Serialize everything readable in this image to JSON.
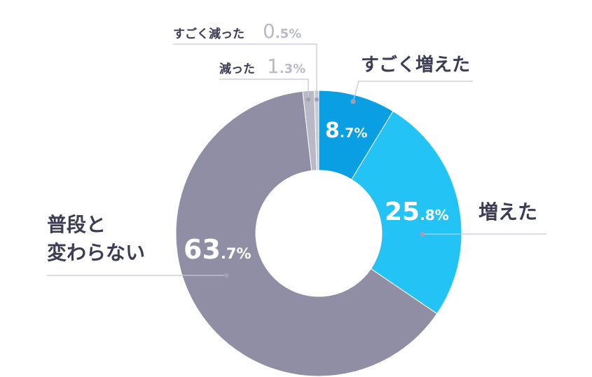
{
  "chart_data": {
    "type": "pie",
    "title": "",
    "categories": [
      "すごく増えた",
      "増えた",
      "普段と変わらない",
      "減った",
      "すごく減った"
    ],
    "values": [
      8.7,
      25.8,
      63.7,
      1.3,
      0.5
    ],
    "colors": [
      "#0a9fe3",
      "#23c4f5",
      "#8f8ea4",
      "#b8b8c6",
      "#c9c9d4"
    ],
    "value_labels": [
      {
        "num": "8",
        "dec": ".7%"
      },
      {
        "num": "25",
        "dec": ".8%"
      },
      {
        "num": "63",
        "dec": ".7%"
      },
      {
        "num": "1",
        "dec": ".3%"
      },
      {
        "num": "0",
        "dec": ".5%"
      }
    ],
    "label_lines": {
      "normal_no_change": [
        "普段と",
        "変わらない"
      ]
    }
  }
}
